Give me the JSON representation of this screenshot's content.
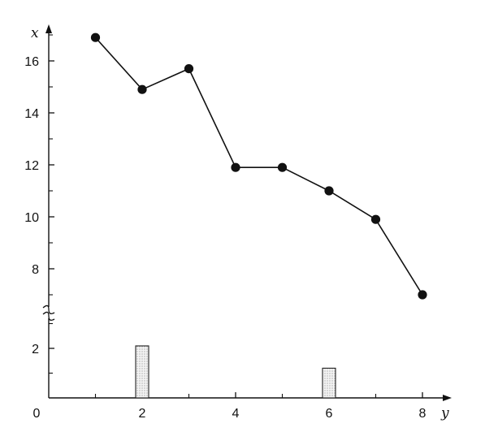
{
  "chart_data": {
    "type": "line",
    "xlabel": "y",
    "ylabel": "x",
    "x_ticks": [
      "0",
      "2",
      "4",
      "6",
      "8"
    ],
    "y_ticks": [
      "8",
      "10",
      "12",
      "14",
      "16"
    ],
    "y_ticks_lower": [
      "2"
    ],
    "xlim": [
      0,
      8
    ],
    "ylim": [
      7,
      17.5
    ],
    "ylim_lower": [
      0,
      2.5
    ],
    "y_axis_break": true,
    "grid": false,
    "series": [
      {
        "x": [
          1,
          2,
          3,
          4,
          5,
          6,
          7,
          8
        ],
        "values": [
          16.9,
          14.9,
          15.7,
          11.9,
          11.9,
          11.0,
          9.9,
          7.0
        ]
      }
    ],
    "bars": [
      {
        "x": 2,
        "value": 2.1
      },
      {
        "x": 6,
        "value": 1.2
      }
    ]
  }
}
